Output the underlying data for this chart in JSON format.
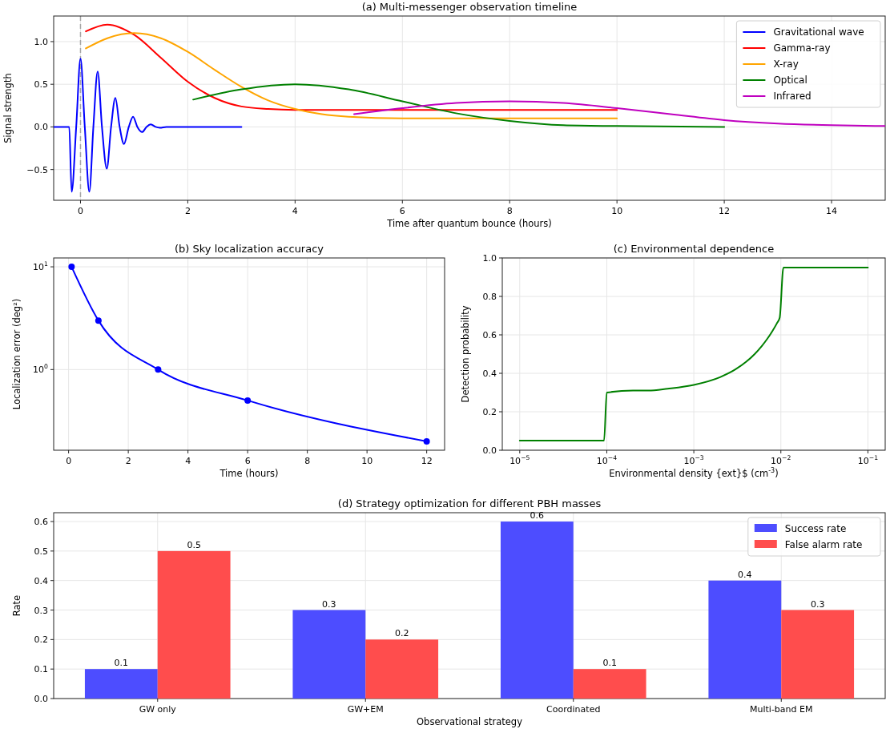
{
  "chart_data": [
    {
      "type": "line",
      "title": "(a) Multi-messenger observation timeline",
      "xlabel": "Time after quantum bounce (hours)",
      "ylabel": "Signal strength",
      "xlim": [
        -0.5,
        15
      ],
      "ylim": [
        -0.86,
        1.3
      ],
      "xticks": [
        0,
        2,
        4,
        6,
        8,
        10,
        12,
        14
      ],
      "yticks": [
        {
          "value": -0.5,
          "label": "−0.5"
        },
        {
          "value": 0,
          "label": "0.0"
        },
        {
          "value": 0.5,
          "label": "0.5"
        },
        {
          "value": 1,
          "label": "1.0"
        }
      ],
      "grid": true,
      "legend": "top right",
      "ref_lines": [
        {
          "axis": "x",
          "value": 0,
          "color": "#a6a6a6",
          "line_style": "dashed"
        }
      ],
      "series": [
        {
          "name": "Gravitational wave",
          "color": "#0000ff",
          "x": [
            -0.5,
            -0.21,
            -0.165,
            -0.08,
            0,
            0.08,
            0.165,
            0.24,
            0.32,
            0.4,
            0.49,
            0.57,
            0.65,
            0.73,
            0.81,
            0.9,
            0.98,
            1.06,
            1.15,
            1.23,
            1.31,
            1.4,
            1.48,
            1.6,
            3
          ],
          "values": [
            0,
            0,
            -0.76,
            0,
            0.8,
            0,
            -0.76,
            0,
            0.65,
            0,
            -0.49,
            0,
            0.34,
            0,
            -0.2,
            0,
            0.12,
            0,
            -0.06,
            0,
            0.03,
            0,
            -0.01,
            0,
            0
          ]
        },
        {
          "name": "Gamma-ray",
          "color": "#ff0000",
          "x": [
            0.1,
            0.5,
            1,
            1.5,
            2,
            2.5,
            3,
            3.5,
            4,
            5,
            10
          ],
          "values": [
            1.12,
            1.2,
            1.08,
            0.81,
            0.53,
            0.34,
            0.24,
            0.21,
            0.2,
            0.2,
            0.2
          ]
        },
        {
          "name": "X-ray",
          "color": "#ffa500",
          "x": [
            0.1,
            0.5,
            1,
            1.5,
            2,
            2.5,
            3,
            3.5,
            4,
            4.5,
            5,
            6,
            10
          ],
          "values": [
            0.92,
            1.04,
            1.1,
            1.04,
            0.88,
            0.67,
            0.47,
            0.31,
            0.21,
            0.15,
            0.12,
            0.1,
            0.1
          ]
        },
        {
          "name": "Optical",
          "color": "#008000",
          "x": [
            2.1,
            3,
            4,
            5,
            6,
            7,
            8,
            9,
            10,
            12
          ],
          "values": [
            0.32,
            0.44,
            0.5,
            0.44,
            0.3,
            0.16,
            0.07,
            0.02,
            0.01,
            0
          ]
        },
        {
          "name": "Infrared",
          "color": "#bf00bf",
          "x": [
            5.1,
            6,
            7,
            8,
            9,
            10,
            11,
            12,
            13,
            14,
            15
          ],
          "values": [
            0.15,
            0.22,
            0.28,
            0.3,
            0.28,
            0.22,
            0.15,
            0.08,
            0.04,
            0.02,
            0.01
          ]
        }
      ]
    },
    {
      "type": "line",
      "title": "(b) Sky localization accuracy",
      "xlabel": "Time (hours)",
      "ylabel": "Localization error (deg²)",
      "log": "y",
      "xlim": [
        -0.5,
        12.6
      ],
      "ylim": [
        0.164,
        12.2
      ],
      "xticks": [
        0,
        2,
        4,
        6,
        8,
        10,
        12
      ],
      "yticks": [
        {
          "value": 1,
          "label": "10$^{0}$"
        },
        {
          "value": 10,
          "label": "10$^{1}$"
        }
      ],
      "grid": true,
      "marker": "circle",
      "series": [
        {
          "color": "#0000ff",
          "x": [
            0.1,
            1,
            3,
            6,
            12
          ],
          "values": [
            10,
            3,
            1,
            0.5,
            0.2
          ]
        }
      ]
    },
    {
      "type": "line",
      "title": "(c) Environmental dependence",
      "xlabel": "Environmental density {ext}$ (cm$^{-3}$)",
      "ylabel": "Detection probability",
      "log": "x",
      "xlim": [
        6.3e-06,
        0.158
      ],
      "ylim": [
        0,
        1
      ],
      "xticks": [
        {
          "value": 1e-05,
          "label": "10$^{−5}$"
        },
        {
          "value": 0.0001,
          "label": "10$^{−4}$"
        },
        {
          "value": 0.001,
          "label": "10$^{−3}$"
        },
        {
          "value": 0.01,
          "label": "10$^{−2}$"
        },
        {
          "value": 0.1,
          "label": "10$^{−1}$"
        }
      ],
      "yticks": [
        {
          "value": 0,
          "label": "0.0"
        },
        {
          "value": 0.2,
          "label": "0.2"
        },
        {
          "value": 0.4,
          "label": "0.4"
        },
        {
          "value": 0.6,
          "label": "0.6"
        },
        {
          "value": 0.8,
          "label": "0.8"
        },
        {
          "value": 1,
          "label": "1.0"
        }
      ],
      "grid": true,
      "series": [
        {
          "color": "#008000",
          "x": [
            1e-05,
            9.3e-05,
            0.0001,
            0.0002,
            0.0003,
            0.0005,
            0.001,
            0.002,
            0.003,
            0.004,
            0.005,
            0.006,
            0.007,
            0.008,
            0.009,
            0.0097,
            0.0107,
            0.1
          ],
          "values": [
            0.05,
            0.05,
            0.3,
            0.31,
            0.31,
            0.32,
            0.34,
            0.38,
            0.42,
            0.46,
            0.5,
            0.54,
            0.58,
            0.62,
            0.66,
            0.69,
            0.95,
            0.95
          ]
        }
      ]
    },
    {
      "type": "bar",
      "title": "(d) Strategy optimization for different PBH masses",
      "xlabel": "Observational strategy",
      "ylabel": "Rate",
      "categories": [
        "GW only",
        "GW+EM",
        "Coordinated",
        "Multi-band EM"
      ],
      "ylim": [
        0,
        0.63
      ],
      "yticks": [
        {
          "value": 0,
          "label": "0.0"
        },
        {
          "value": 0.1,
          "label": "0.1"
        },
        {
          "value": 0.2,
          "label": "0.2"
        },
        {
          "value": 0.3,
          "label": "0.3"
        },
        {
          "value": 0.4,
          "label": "0.4"
        },
        {
          "value": 0.5,
          "label": "0.5"
        },
        {
          "value": 0.6,
          "label": "0.6"
        }
      ],
      "grid": true,
      "legend": "top right",
      "data_labels": true,
      "series": [
        {
          "name": "Success rate",
          "color": "#4d4dff",
          "values": [
            0.1,
            0.3,
            0.6,
            0.4
          ]
        },
        {
          "name": "False alarm rate",
          "color": "#ff4d4d",
          "values": [
            0.5,
            0.2,
            0.1,
            0.3
          ]
        }
      ]
    }
  ]
}
